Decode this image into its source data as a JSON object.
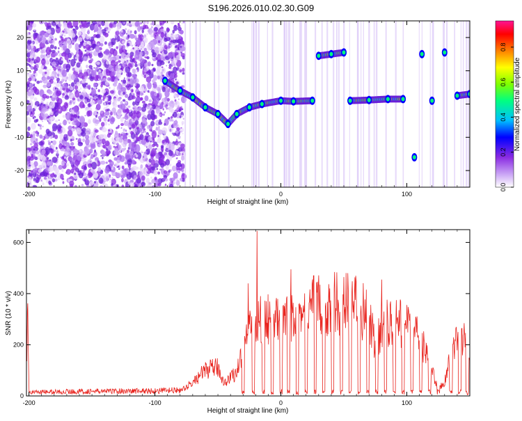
{
  "title": "S196.2026.010.02.30.G09",
  "chart_data": [
    {
      "type": "heatmap",
      "title": "S196.2026.010.02.30.G09",
      "xlabel": "Height of straight line (km)",
      "ylabel": "Frequency (Hz)",
      "xlim": [
        -202,
        150
      ],
      "ylim": [
        -25,
        25
      ],
      "xticks": [
        -200,
        -100,
        0,
        100
      ],
      "yticks": [
        -20,
        -10,
        0,
        10,
        20
      ],
      "colorbar": {
        "label": "Normalized spectral amplitude",
        "range": [
          0,
          0.95
        ],
        "ticks": [
          "0.0",
          "0.2",
          "0.4",
          "0.6",
          "0.8"
        ],
        "colors": [
          "#ffffff",
          "#c9a3f5",
          "#8a2be2",
          "#0000ff",
          "#00bfff",
          "#00ff80",
          "#7fff00",
          "#ffff00",
          "#ff8000",
          "#ff0000",
          "#ff1493"
        ]
      },
      "ridge": [
        {
          "x": -92,
          "y": 7
        },
        {
          "x": -80,
          "y": 4
        },
        {
          "x": -70,
          "y": 2
        },
        {
          "x": -60,
          "y": -1
        },
        {
          "x": -50,
          "y": -3
        },
        {
          "x": -42,
          "y": -6
        },
        {
          "x": -35,
          "y": -3
        },
        {
          "x": -25,
          "y": -1
        },
        {
          "x": -15,
          "y": 0
        },
        {
          "x": 0,
          "y": 1
        },
        {
          "x": 10,
          "y": 0.8
        },
        {
          "x": 25,
          "y": 1
        },
        {
          "x": 30,
          "y": 14.5
        },
        {
          "x": 40,
          "y": 15
        },
        {
          "x": 50,
          "y": 15.5
        },
        {
          "x": 55,
          "y": 1
        },
        {
          "x": 70,
          "y": 1.2
        },
        {
          "x": 85,
          "y": 1.5
        },
        {
          "x": 97,
          "y": 1.5
        },
        {
          "x": 106,
          "y": -16
        },
        {
          "x": 112,
          "y": 15
        },
        {
          "x": 120,
          "y": 1
        },
        {
          "x": 130,
          "y": 15.5
        },
        {
          "x": 140,
          "y": 2.5
        },
        {
          "x": 150,
          "y": 3
        }
      ]
    },
    {
      "type": "line",
      "xlabel": "Height of straight line (km)",
      "ylabel": "SNR (10 * v/v)",
      "xlim": [
        -202,
        150
      ],
      "ylim": [
        0,
        650
      ],
      "xticks": [
        -200,
        -100,
        0,
        100
      ],
      "yticks": [
        0,
        200,
        400,
        600
      ],
      "line_color": "#e8221c",
      "envelope": [
        {
          "x": -200,
          "y": 15
        },
        {
          "x": -150,
          "y": 18
        },
        {
          "x": -100,
          "y": 20
        },
        {
          "x": -80,
          "y": 22
        },
        {
          "x": -70,
          "y": 60
        },
        {
          "x": -60,
          "y": 120
        },
        {
          "x": -50,
          "y": 130
        },
        {
          "x": -45,
          "y": 60
        },
        {
          "x": -35,
          "y": 110
        },
        {
          "x": -28,
          "y": 260
        },
        {
          "x": -20,
          "y": 340
        },
        {
          "x": -10,
          "y": 350
        },
        {
          "x": 0,
          "y": 330
        },
        {
          "x": 10,
          "y": 360
        },
        {
          "x": 20,
          "y": 390
        },
        {
          "x": 30,
          "y": 410
        },
        {
          "x": 40,
          "y": 420
        },
        {
          "x": 50,
          "y": 430
        },
        {
          "x": 60,
          "y": 420
        },
        {
          "x": 70,
          "y": 360
        },
        {
          "x": 75,
          "y": 220
        },
        {
          "x": 80,
          "y": 330
        },
        {
          "x": 90,
          "y": 340
        },
        {
          "x": 100,
          "y": 320
        },
        {
          "x": 110,
          "y": 280
        },
        {
          "x": 118,
          "y": 150
        },
        {
          "x": 125,
          "y": 40
        },
        {
          "x": 130,
          "y": 60
        },
        {
          "x": 135,
          "y": 220
        },
        {
          "x": 145,
          "y": 260
        },
        {
          "x": 150,
          "y": 240
        }
      ],
      "spikes": [
        {
          "x": -19,
          "y": 645
        },
        {
          "x": -26,
          "y": 440
        },
        {
          "x": 8,
          "y": 495
        },
        {
          "x": 26,
          "y": 470
        },
        {
          "x": 53,
          "y": 480
        },
        {
          "x": 80,
          "y": 455
        }
      ],
      "dropouts": [
        -30,
        -22,
        -14,
        -7,
        0,
        6,
        13,
        20,
        27,
        34,
        41,
        48,
        55,
        62,
        69,
        76,
        83,
        90,
        97,
        104,
        111,
        118,
        125,
        135,
        142,
        148
      ]
    }
  ]
}
